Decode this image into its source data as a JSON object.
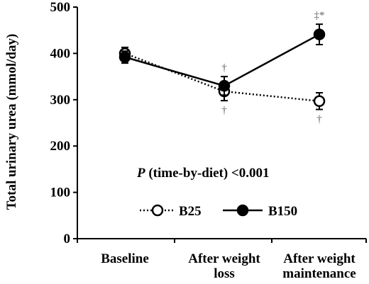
{
  "chart_data": {
    "type": "line",
    "categories": [
      "Baseline",
      "After weight loss",
      "After weight maintenance"
    ],
    "category_lines": [
      [
        "Baseline"
      ],
      [
        "After weight",
        "loss"
      ],
      [
        "After weight",
        "maintenance"
      ]
    ],
    "ylabel": "Total urinary urea (mmol/day)",
    "ylim": [
      0,
      500
    ],
    "yticks": [
      "0",
      "100",
      "200",
      "300",
      "400",
      "500"
    ],
    "annotation": {
      "italic": "P",
      "text": " (time-by-diet) <0.001"
    },
    "legend_position": "bottom-left, inside plot",
    "series": [
      {
        "name": "B25",
        "style": "dotted line, open circle",
        "values": [
          400,
          318,
          297
        ],
        "error": [
          13,
          20,
          18
        ],
        "markers": [
          "",
          "†",
          "†"
        ]
      },
      {
        "name": "B150",
        "style": "solid line, filled circle",
        "values": [
          392,
          330,
          441
        ],
        "error": [
          13,
          20,
          22
        ],
        "markers": [
          "",
          "†",
          "‡*"
        ]
      }
    ],
    "colors": {
      "axis": "#000000",
      "line": "#000000",
      "marker_text": "#666666"
    }
  }
}
